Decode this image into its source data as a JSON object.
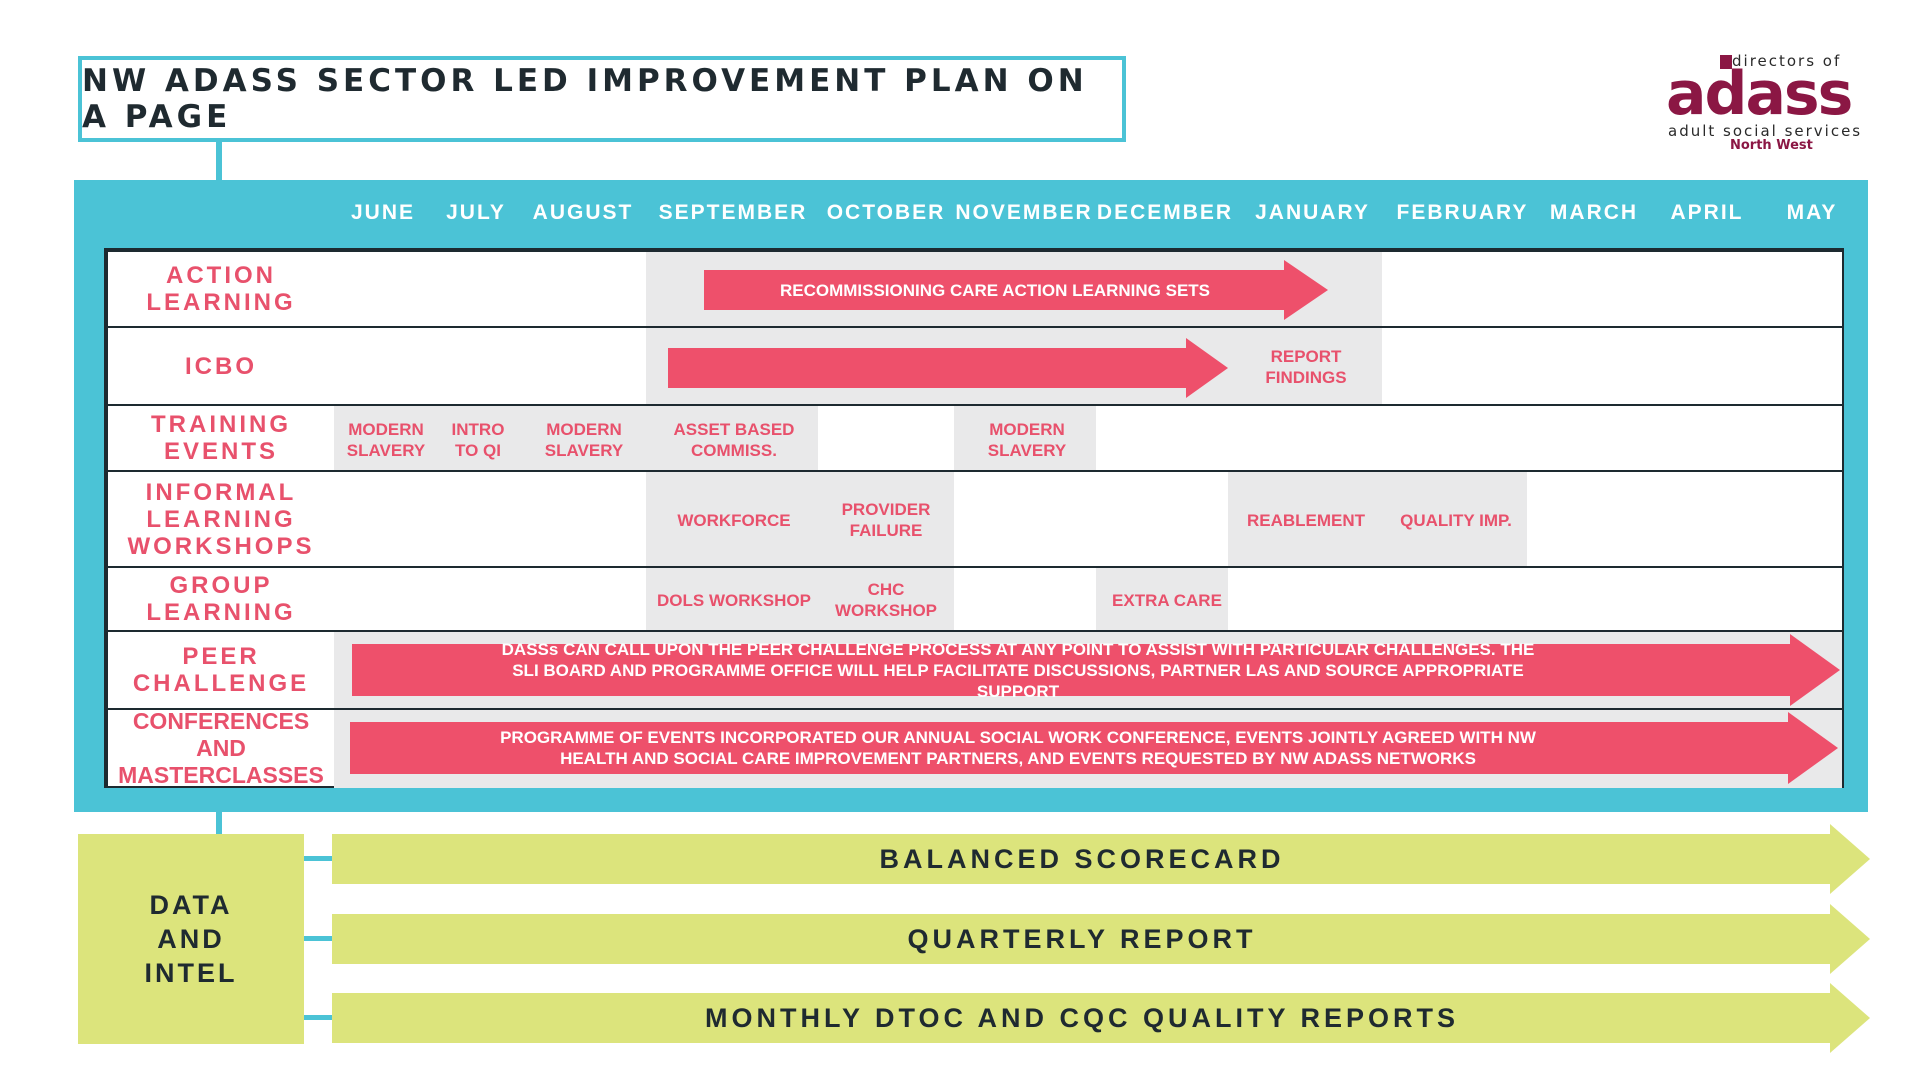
{
  "title": "NW ADASS SECTOR LED IMPROVEMENT PLAN ON A PAGE",
  "logo": {
    "directors": "directors of",
    "brand": "adass",
    "subtitle": "adult social services",
    "region": "North West"
  },
  "months": [
    "JUNE",
    "JULY",
    "AUGUST",
    "SEPTEMBER",
    "OCTOBER",
    "NOVEMBER",
    "DECEMBER",
    "JANUARY",
    "FEBRUARY",
    "MARCH",
    "APRIL",
    "MAY"
  ],
  "rows": [
    {
      "label": "ACTION\nLEARNING"
    },
    {
      "label": "ICBO"
    },
    {
      "label": "TRAINING\nEVENTS"
    },
    {
      "label": "INFORMAL\nLEARNING\nWORKSHOPS"
    },
    {
      "label": "GROUP\nLEARNING"
    },
    {
      "label": "PEER\nCHALLENGE"
    },
    {
      "label": "CONFERENCES AND\nMASTERCLASSES"
    }
  ],
  "arrows": {
    "action_learning": "RECOMMISSIONING CARE ACTION  LEARNING SETS",
    "peer_challenge": "DASSs CAN CALL UPON THE PEER CHALLENGE PROCESS AT ANY POINT TO ASSIST WITH PARTICULAR CHALLENGES.  THE SLI BOARD AND PROGRAMME OFFICE WILL HELP FACILITATE DISCUSSIONS, PARTNER LAS AND SOURCE APPROPRIATE SUPPORT",
    "conferences": "PROGRAMME OF EVENTS INCORPORATED OUR ANNUAL SOCIAL WORK CONFERENCE, EVENTS JOINTLY AGREED WITH NW HEALTH AND SOCIAL CARE IMPROVEMENT PARTNERS, AND EVENTS REQUESTED BY NW ADASS NETWORKS"
  },
  "events": {
    "icbo_report": "REPORT FINDINGS",
    "training_june": "MODERN SLAVERY",
    "training_july": "INTRO TO QI",
    "training_august": "MODERN SLAVERY",
    "training_september": "ASSET BASED COMMISS.",
    "training_november": "MODERN SLAVERY",
    "informal_september": "WORKFORCE",
    "informal_october": "PROVIDER FAILURE",
    "informal_january": "REABLEMENT",
    "informal_february": "QUALITY IMP.",
    "group_september": "DOLS WORKSHOP",
    "group_october": "CHC WORKSHOP",
    "group_december": "EXTRA CARE"
  },
  "data_intel": {
    "label": "DATA AND INTEL",
    "streams": [
      "BALANCED SCORECARD",
      "QUARTERLY REPORT",
      "MONTHLY DTOC AND CQC QUALITY REPORTS"
    ]
  }
}
